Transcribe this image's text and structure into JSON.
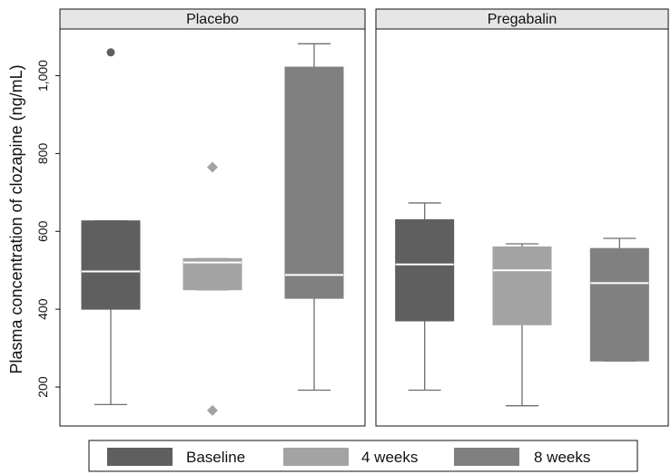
{
  "chart_data": {
    "type": "box",
    "ylabel": "Plasma concentration of clozapine (ng/mL)",
    "y_ticks": [
      200,
      400,
      600,
      800,
      1000
    ],
    "y_tick_labels": [
      "200",
      "400",
      "600",
      "800",
      "1,000"
    ],
    "ylim": [
      100,
      1120
    ],
    "grid": false,
    "legend_position": "bottom",
    "colors": {
      "Baseline": "#5f5f5f",
      "4 weeks": "#a3a3a3",
      "8 weeks": "#808080",
      "median": "#ffffff",
      "whisker": "#6e6e6e"
    },
    "legend": [
      "Baseline",
      "4 weeks",
      "8 weeks"
    ],
    "panels": [
      {
        "title": "Placebo",
        "boxes": [
          {
            "series": "Baseline",
            "whisker_low": 155,
            "q1": 400,
            "median": 497,
            "q3": 627,
            "whisker_high": 627,
            "outliers": [
              1060
            ],
            "outlier_marker": "circle"
          },
          {
            "series": "4 weeks",
            "whisker_low": 450,
            "q1": 450,
            "median": 520,
            "q3": 530,
            "whisker_high": 530,
            "outliers": [
              765,
              140
            ],
            "outlier_marker": "diamond"
          },
          {
            "series": "8 weeks",
            "whisker_low": 192,
            "q1": 428,
            "median": 488,
            "q3": 1022,
            "whisker_high": 1082,
            "outliers": [],
            "outlier_marker": "circle"
          }
        ]
      },
      {
        "title": "Pregabalin",
        "boxes": [
          {
            "series": "Baseline",
            "whisker_low": 192,
            "q1": 370,
            "median": 515,
            "q3": 630,
            "whisker_high": 673,
            "outliers": [],
            "outlier_marker": "circle"
          },
          {
            "series": "4 weeks",
            "whisker_low": 152,
            "q1": 360,
            "median": 500,
            "q3": 560,
            "whisker_high": 568,
            "outliers": [],
            "outlier_marker": "diamond"
          },
          {
            "series": "8 weeks",
            "whisker_low": 267,
            "q1": 267,
            "median": 467,
            "q3": 556,
            "whisker_high": 582,
            "outliers": [],
            "outlier_marker": "circle"
          }
        ]
      }
    ]
  }
}
